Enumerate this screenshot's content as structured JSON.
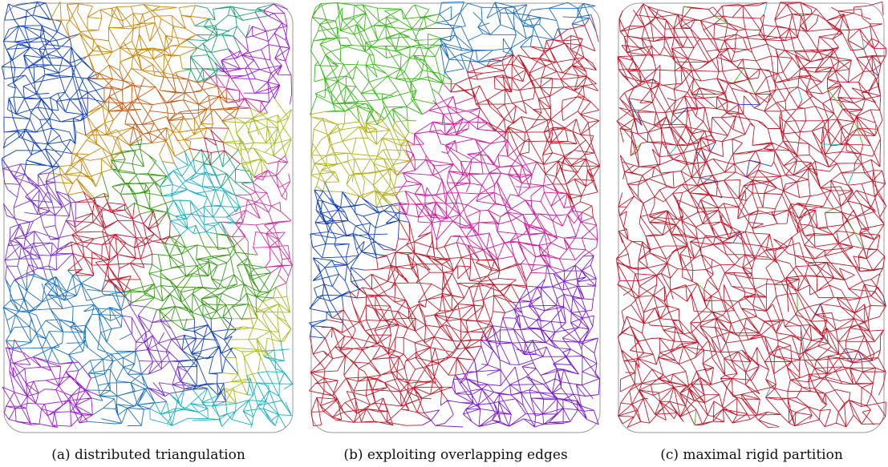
{
  "panels": [
    {
      "caption": "(a) distributed triangulation"
    },
    {
      "caption": "(b) exploiting overlapping edges"
    },
    {
      "caption": "(c) maximal rigid partition"
    }
  ]
}
